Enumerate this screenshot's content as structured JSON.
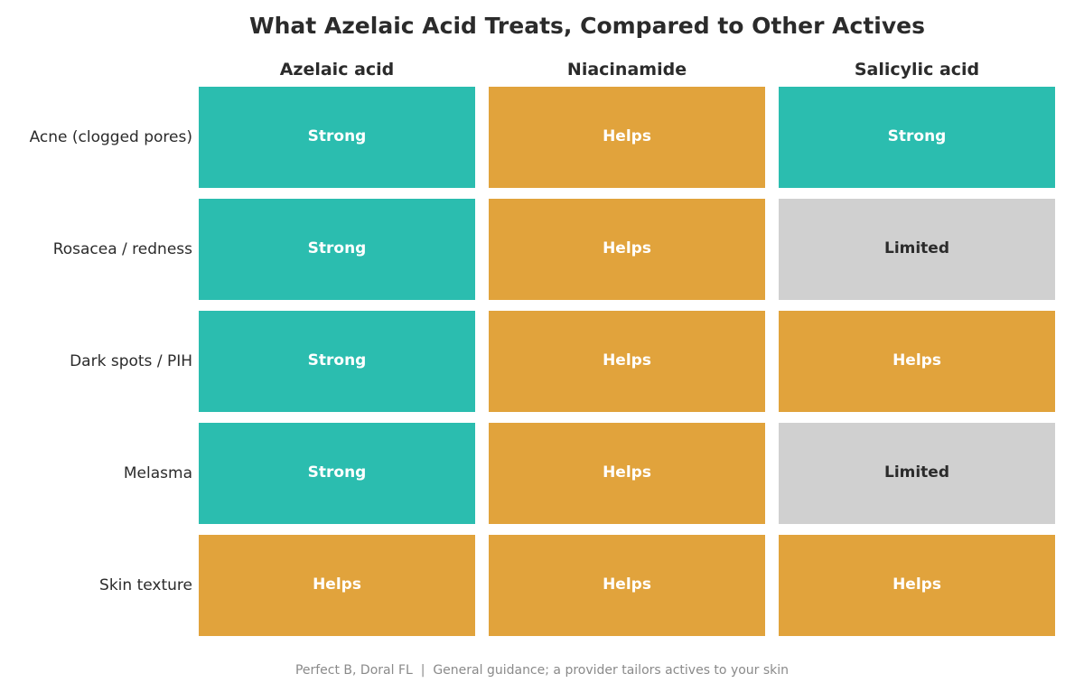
{
  "chart_data": {
    "type": "table",
    "title": "What Azelaic Acid Treats, Compared to Other Actives",
    "columns": [
      "Azelaic acid",
      "Niacinamide",
      "Salicylic acid"
    ],
    "rows": [
      "Acne (clogged pores)",
      "Rosacea / redness",
      "Dark spots / PIH",
      "Melasma",
      "Skin texture"
    ],
    "values": [
      [
        "Strong",
        "Helps",
        "Strong"
      ],
      [
        "Strong",
        "Helps",
        "Limited"
      ],
      [
        "Strong",
        "Helps",
        "Helps"
      ],
      [
        "Strong",
        "Helps",
        "Limited"
      ],
      [
        "Helps",
        "Helps",
        "Helps"
      ]
    ],
    "level_colors": {
      "Strong": "#2bbdaf",
      "Helps": "#e1a33c",
      "Limited": "#d0d0d0"
    },
    "level_text_colors": {
      "Strong": "#ffffff",
      "Helps": "#ffffff",
      "Limited": "#2b2b2b"
    }
  },
  "footer": "Perfect B, Doral FL  |  General guidance; a provider tailors actives to your skin"
}
